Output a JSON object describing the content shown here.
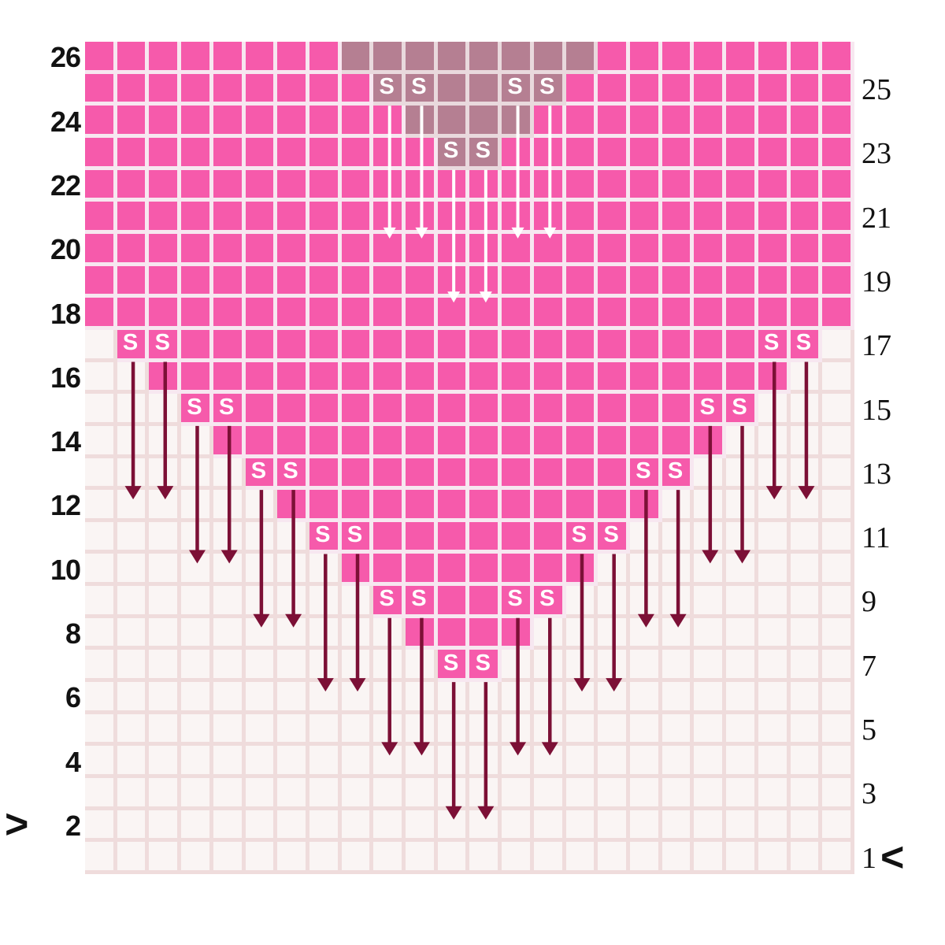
{
  "chart": {
    "type": "knitting-colorwork-heart-chart",
    "columns": 24,
    "rows": 26,
    "stitch_symbol": "S",
    "direction_marker_left": ">",
    "direction_marker_right": "<",
    "left_row_labels": [
      26,
      24,
      22,
      20,
      18,
      16,
      14,
      12,
      10,
      8,
      6,
      4,
      2
    ],
    "right_row_labels": [
      25,
      23,
      21,
      19,
      17,
      15,
      13,
      11,
      9,
      7,
      5,
      3,
      1
    ],
    "colors": {
      "stitch_pink": "#f65aab",
      "slipped_mauve": "#b57f92",
      "empty_cell": "#faf5f4",
      "gridline_on_stitch": "#f7e7f0",
      "gridline_on_slip": "#e9d9dd",
      "gridline_on_empty": "#efdcdc",
      "arrow_dark": "#7c1036",
      "arrow_light": "#ffffff",
      "label_text": "#121212",
      "s_mark_text": "#ffffff"
    },
    "grid_rows": [
      {
        "row": 26,
        "stitch": [
          [
            0,
            7
          ],
          [
            16,
            23
          ]
        ],
        "slip": [
          [
            8,
            15
          ]
        ],
        "s_marks": []
      },
      {
        "row": 25,
        "stitch": [
          [
            0,
            8
          ],
          [
            15,
            23
          ]
        ],
        "slip": [
          [
            9,
            14
          ]
        ],
        "s_marks": [
          9,
          10,
          13,
          14
        ]
      },
      {
        "row": 24,
        "stitch": [
          [
            0,
            9
          ],
          [
            14,
            23
          ]
        ],
        "slip": [
          [
            10,
            13
          ]
        ],
        "s_marks": []
      },
      {
        "row": 23,
        "stitch": [
          [
            0,
            10
          ],
          [
            13,
            23
          ]
        ],
        "slip": [
          [
            11,
            12
          ]
        ],
        "s_marks": [
          11,
          12
        ]
      },
      {
        "row": 22,
        "stitch": [
          [
            0,
            23
          ]
        ],
        "slip": [],
        "s_marks": []
      },
      {
        "row": 21,
        "stitch": [
          [
            0,
            23
          ]
        ],
        "slip": [],
        "s_marks": []
      },
      {
        "row": 20,
        "stitch": [
          [
            0,
            23
          ]
        ],
        "slip": [],
        "s_marks": []
      },
      {
        "row": 19,
        "stitch": [
          [
            0,
            23
          ]
        ],
        "slip": [],
        "s_marks": []
      },
      {
        "row": 18,
        "stitch": [
          [
            0,
            23
          ]
        ],
        "slip": [],
        "s_marks": []
      },
      {
        "row": 17,
        "stitch": [
          [
            1,
            22
          ]
        ],
        "slip": [],
        "s_marks": [
          1,
          2,
          21,
          22
        ]
      },
      {
        "row": 16,
        "stitch": [
          [
            2,
            21
          ]
        ],
        "slip": [],
        "s_marks": []
      },
      {
        "row": 15,
        "stitch": [
          [
            3,
            20
          ]
        ],
        "slip": [],
        "s_marks": [
          3,
          4,
          19,
          20
        ]
      },
      {
        "row": 14,
        "stitch": [
          [
            4,
            19
          ]
        ],
        "slip": [],
        "s_marks": []
      },
      {
        "row": 13,
        "stitch": [
          [
            5,
            18
          ]
        ],
        "slip": [],
        "s_marks": [
          5,
          6,
          17,
          18
        ]
      },
      {
        "row": 12,
        "stitch": [
          [
            6,
            17
          ]
        ],
        "slip": [],
        "s_marks": []
      },
      {
        "row": 11,
        "stitch": [
          [
            7,
            16
          ]
        ],
        "slip": [],
        "s_marks": [
          7,
          8,
          15,
          16
        ]
      },
      {
        "row": 10,
        "stitch": [
          [
            8,
            15
          ]
        ],
        "slip": [],
        "s_marks": []
      },
      {
        "row": 9,
        "stitch": [
          [
            9,
            14
          ]
        ],
        "slip": [],
        "s_marks": [
          9,
          10,
          13,
          14
        ]
      },
      {
        "row": 8,
        "stitch": [
          [
            10,
            13
          ]
        ],
        "slip": [],
        "s_marks": []
      },
      {
        "row": 7,
        "stitch": [
          [
            11,
            12
          ]
        ],
        "slip": [],
        "s_marks": [
          11,
          12
        ]
      },
      {
        "row": 6,
        "stitch": [],
        "slip": [],
        "s_marks": []
      },
      {
        "row": 5,
        "stitch": [],
        "slip": [],
        "s_marks": []
      },
      {
        "row": 4,
        "stitch": [],
        "slip": [],
        "s_marks": []
      },
      {
        "row": 3,
        "stitch": [],
        "slip": [],
        "s_marks": []
      },
      {
        "row": 2,
        "stitch": [],
        "slip": [],
        "s_marks": []
      },
      {
        "row": 1,
        "stitch": [],
        "slip": [],
        "s_marks": []
      }
    ],
    "arrows": [
      {
        "col": 9,
        "from_row": 25,
        "to_row": 20,
        "style": "light"
      },
      {
        "col": 10,
        "from_row": 25,
        "to_row": 20,
        "style": "light"
      },
      {
        "col": 13,
        "from_row": 25,
        "to_row": 20,
        "style": "light"
      },
      {
        "col": 14,
        "from_row": 25,
        "to_row": 20,
        "style": "light"
      },
      {
        "col": 11,
        "from_row": 23,
        "to_row": 18,
        "style": "light"
      },
      {
        "col": 12,
        "from_row": 23,
        "to_row": 18,
        "style": "light"
      },
      {
        "col": 1,
        "from_row": 17,
        "to_row": 12,
        "style": "dark"
      },
      {
        "col": 2,
        "from_row": 17,
        "to_row": 12,
        "style": "dark"
      },
      {
        "col": 21,
        "from_row": 17,
        "to_row": 12,
        "style": "dark"
      },
      {
        "col": 22,
        "from_row": 17,
        "to_row": 12,
        "style": "dark"
      },
      {
        "col": 3,
        "from_row": 15,
        "to_row": 10,
        "style": "dark"
      },
      {
        "col": 4,
        "from_row": 15,
        "to_row": 10,
        "style": "dark"
      },
      {
        "col": 19,
        "from_row": 15,
        "to_row": 10,
        "style": "dark"
      },
      {
        "col": 20,
        "from_row": 15,
        "to_row": 10,
        "style": "dark"
      },
      {
        "col": 5,
        "from_row": 13,
        "to_row": 8,
        "style": "dark"
      },
      {
        "col": 6,
        "from_row": 13,
        "to_row": 8,
        "style": "dark"
      },
      {
        "col": 17,
        "from_row": 13,
        "to_row": 8,
        "style": "dark"
      },
      {
        "col": 18,
        "from_row": 13,
        "to_row": 8,
        "style": "dark"
      },
      {
        "col": 7,
        "from_row": 11,
        "to_row": 6,
        "style": "dark"
      },
      {
        "col": 8,
        "from_row": 11,
        "to_row": 6,
        "style": "dark"
      },
      {
        "col": 15,
        "from_row": 11,
        "to_row": 6,
        "style": "dark"
      },
      {
        "col": 16,
        "from_row": 11,
        "to_row": 6,
        "style": "dark"
      },
      {
        "col": 9,
        "from_row": 9,
        "to_row": 4,
        "style": "dark"
      },
      {
        "col": 10,
        "from_row": 9,
        "to_row": 4,
        "style": "dark"
      },
      {
        "col": 13,
        "from_row": 9,
        "to_row": 4,
        "style": "dark"
      },
      {
        "col": 14,
        "from_row": 9,
        "to_row": 4,
        "style": "dark"
      },
      {
        "col": 11,
        "from_row": 7,
        "to_row": 2,
        "style": "dark"
      },
      {
        "col": 12,
        "from_row": 7,
        "to_row": 2,
        "style": "dark"
      }
    ]
  }
}
